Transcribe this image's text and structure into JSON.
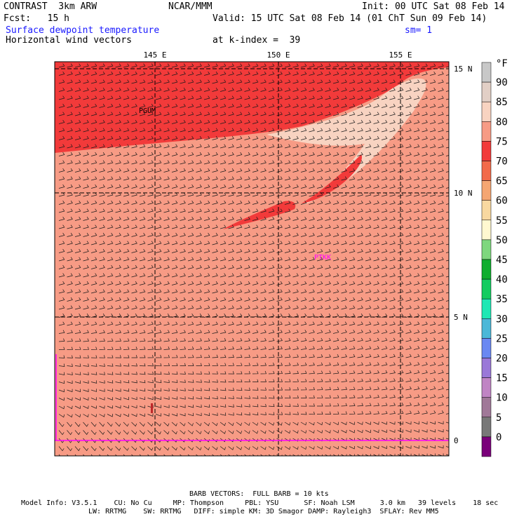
{
  "header": {
    "model_title": "CONTRAST  3km ARW",
    "center": "NCAR/MMM",
    "init": "Init: 00 UTC Sat 08 Feb 14",
    "fcst": "Fcst:   15 h",
    "valid": "Valid: 15 UTC Sat 08 Feb 14 (01 ChT Sun 09 Feb 14)",
    "field1": "Surface dewpoint temperature",
    "field2": "Horizontal wind vectors",
    "smooth": "sm= 1",
    "kindex": "at k-index =  39"
  },
  "map": {
    "lon_ticks": [
      "145 E",
      "150 E",
      "155 E"
    ],
    "lat_ticks": [
      "15 N",
      "10 N",
      "5 N",
      "0"
    ],
    "stations": [
      "PGUM",
      "PTKK"
    ]
  },
  "legend": {
    "unit": "°F",
    "labels": [
      "90",
      "85",
      "80",
      "75",
      "70",
      "65",
      "60",
      "55",
      "50",
      "45",
      "40",
      "35",
      "30",
      "25",
      "20",
      "15",
      "10",
      "5",
      "0"
    ],
    "colors": [
      "#c8c8c8",
      "#e2cfc6",
      "#f8d3c1",
      "#f79b85",
      "#f23a3a",
      "#f26a4a",
      "#f5a672",
      "#f8d8a0",
      "#fff8d0",
      "#7ed77e",
      "#0fae2e",
      "#13cc60",
      "#1ee8b4",
      "#4bb8d8",
      "#6a88f2",
      "#9a78d8",
      "#c084c4",
      "#a07898",
      "#787878",
      "#7a007a"
    ]
  },
  "footer": {
    "barb": "BARB VECTORS:  FULL BARB = 10 kts",
    "line1": "Model Info: V3.5.1    CU: No Cu     MP: Thompson     PBL: YSU      SF: Noah LSM      3.0 km   39 levels    18 sec",
    "line2": "LW: RRTMG    SW: RRTMG   DIFF: simple KM: 3D Smagor DAMP: Rayleigh3  SFLAY: Rev MM5"
  }
}
